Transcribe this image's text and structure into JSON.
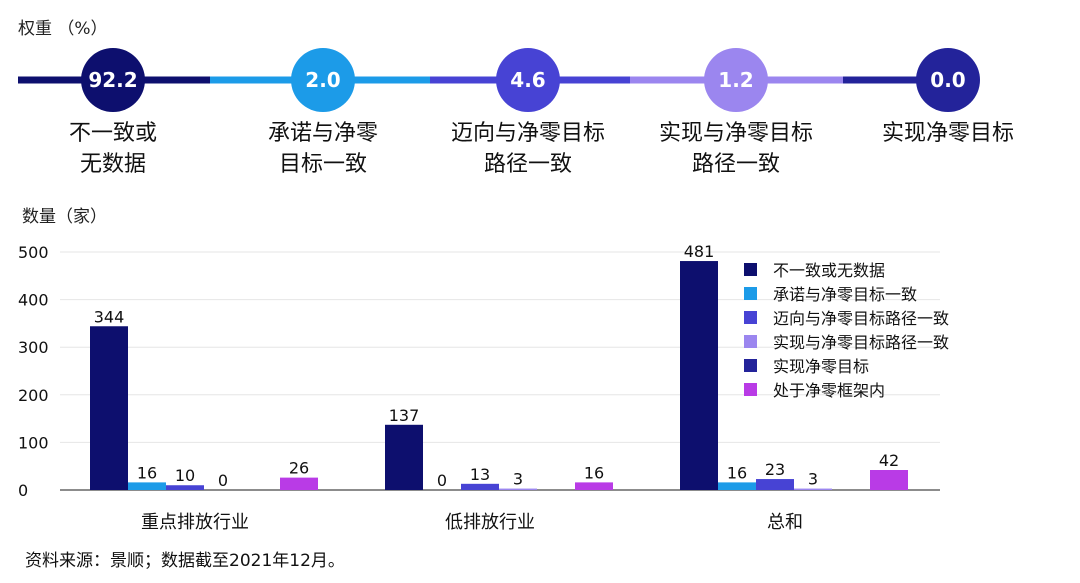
{
  "weights": {
    "title": "权重 （%）",
    "items": [
      {
        "value": "92.2",
        "label": "不一致或\n无数据",
        "color": "#0d0f6e"
      },
      {
        "value": "2.0",
        "label": "承诺与净零\n目标一致",
        "color": "#1c9be8"
      },
      {
        "value": "4.6",
        "label": "迈向与净零目标\n路径一致",
        "color": "#4743d4"
      },
      {
        "value": "1.2",
        "label": "实现与净零目标\n路径一致",
        "color": "#9b86ef"
      },
      {
        "value": "0.0",
        "label": "实现净零目标",
        "color": "#23239a"
      }
    ]
  },
  "count_title": "数量（家）",
  "source": "资料来源：景顺；数据截至2021年12月。",
  "colors": {
    "s1": "#0d0f6e",
    "s2": "#1c9be8",
    "s3": "#4743d4",
    "s4": "#9b86ef",
    "s5": "#23239a",
    "s6": "#b93be6"
  },
  "chart_data": {
    "type": "bar",
    "categories": [
      "重点排放行业",
      "低排放行业",
      "总和"
    ],
    "series": [
      {
        "name": "不一致或无数据",
        "values": [
          344,
          137,
          481
        ]
      },
      {
        "name": "承诺与净零目标一致",
        "values": [
          16,
          0,
          16
        ]
      },
      {
        "name": "迈向与净零目标路径一致",
        "values": [
          10,
          13,
          23
        ]
      },
      {
        "name": "实现与净零目标路径一致",
        "values": [
          0,
          3,
          3
        ]
      },
      {
        "name": "实现净零目标",
        "values": [
          null,
          null,
          null
        ]
      },
      {
        "name": "处于净零框架内",
        "values": [
          26,
          16,
          42
        ]
      }
    ],
    "ylim": [
      0,
      500
    ],
    "yticks": [
      0,
      100,
      200,
      300,
      400,
      500
    ],
    "ylabel": "数量（家）",
    "legend_position": "right"
  }
}
